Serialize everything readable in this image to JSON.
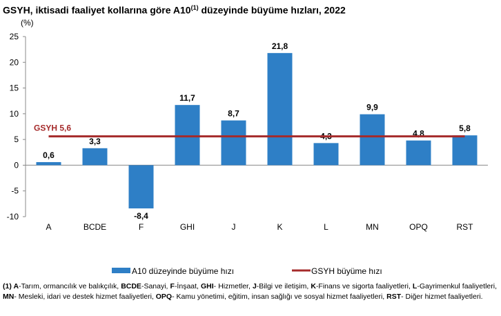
{
  "chart_data": {
    "type": "bar",
    "title": "GSYH, iktisadi faaliyet kollarına göre A10",
    "title_sup": "(1)",
    "title_end": " düzeyinde büyüme hızları, 2022",
    "ylabel": "(%)",
    "ylim": [
      -10,
      25
    ],
    "yticks": [
      25,
      20,
      15,
      10,
      5,
      0,
      -5,
      -10
    ],
    "grid": false,
    "categories": [
      "A",
      "BCDE",
      "F",
      "GHI",
      "J",
      "K",
      "L",
      "MN",
      "OPQ",
      "RST"
    ],
    "series": [
      {
        "name": "A10 düzeyinde büyüme hızı",
        "type": "bar",
        "color": "#2e7fc6",
        "values": [
          0.6,
          3.3,
          -8.4,
          11.7,
          8.7,
          21.8,
          4.3,
          9.9,
          4.8,
          5.8
        ],
        "labels": [
          "0,6",
          "3,3",
          "-8,4",
          "11,7",
          "8,7",
          "21,8",
          "4,3",
          "9,9",
          "4,8",
          "5,8"
        ]
      },
      {
        "name": "GSYH büyüme hızı",
        "type": "line",
        "color": "#a52a2a",
        "value": 5.6,
        "label": "GSYH 5,6"
      }
    ],
    "legend_position": "bottom"
  },
  "footnote": [
    [
      "b",
      "(1) A"
    ],
    [
      "t",
      "-Tarım, ormancılık ve balıkçılık, "
    ],
    [
      "b",
      "BCDE"
    ],
    [
      "t",
      "-Sanayi, "
    ],
    [
      "b",
      "F"
    ],
    [
      "t",
      "-İnşaat, "
    ],
    [
      "b",
      "GHI"
    ],
    [
      "t",
      "- Hizmetler, "
    ],
    [
      "b",
      "J"
    ],
    [
      "t",
      "-Bilgi ve iletişim, "
    ],
    [
      "b",
      "K"
    ],
    [
      "t",
      "-Finans ve sigorta faaliyetleri, "
    ],
    [
      "b",
      "L"
    ],
    [
      "t",
      "-Gayrimenkul faaliyetleri, "
    ],
    [
      "b",
      "MN"
    ],
    [
      "t",
      "- Mesleki, idari ve destek hizmet faaliyetleri, "
    ],
    [
      "b",
      "OPQ"
    ],
    [
      "t",
      "- Kamu yönetimi, eğitim, insan sağlığı ve sosyal hizmet faaliyetleri, "
    ],
    [
      "b",
      "RST"
    ],
    [
      "t",
      "- Diğer hizmet faaliyetleri."
    ]
  ]
}
